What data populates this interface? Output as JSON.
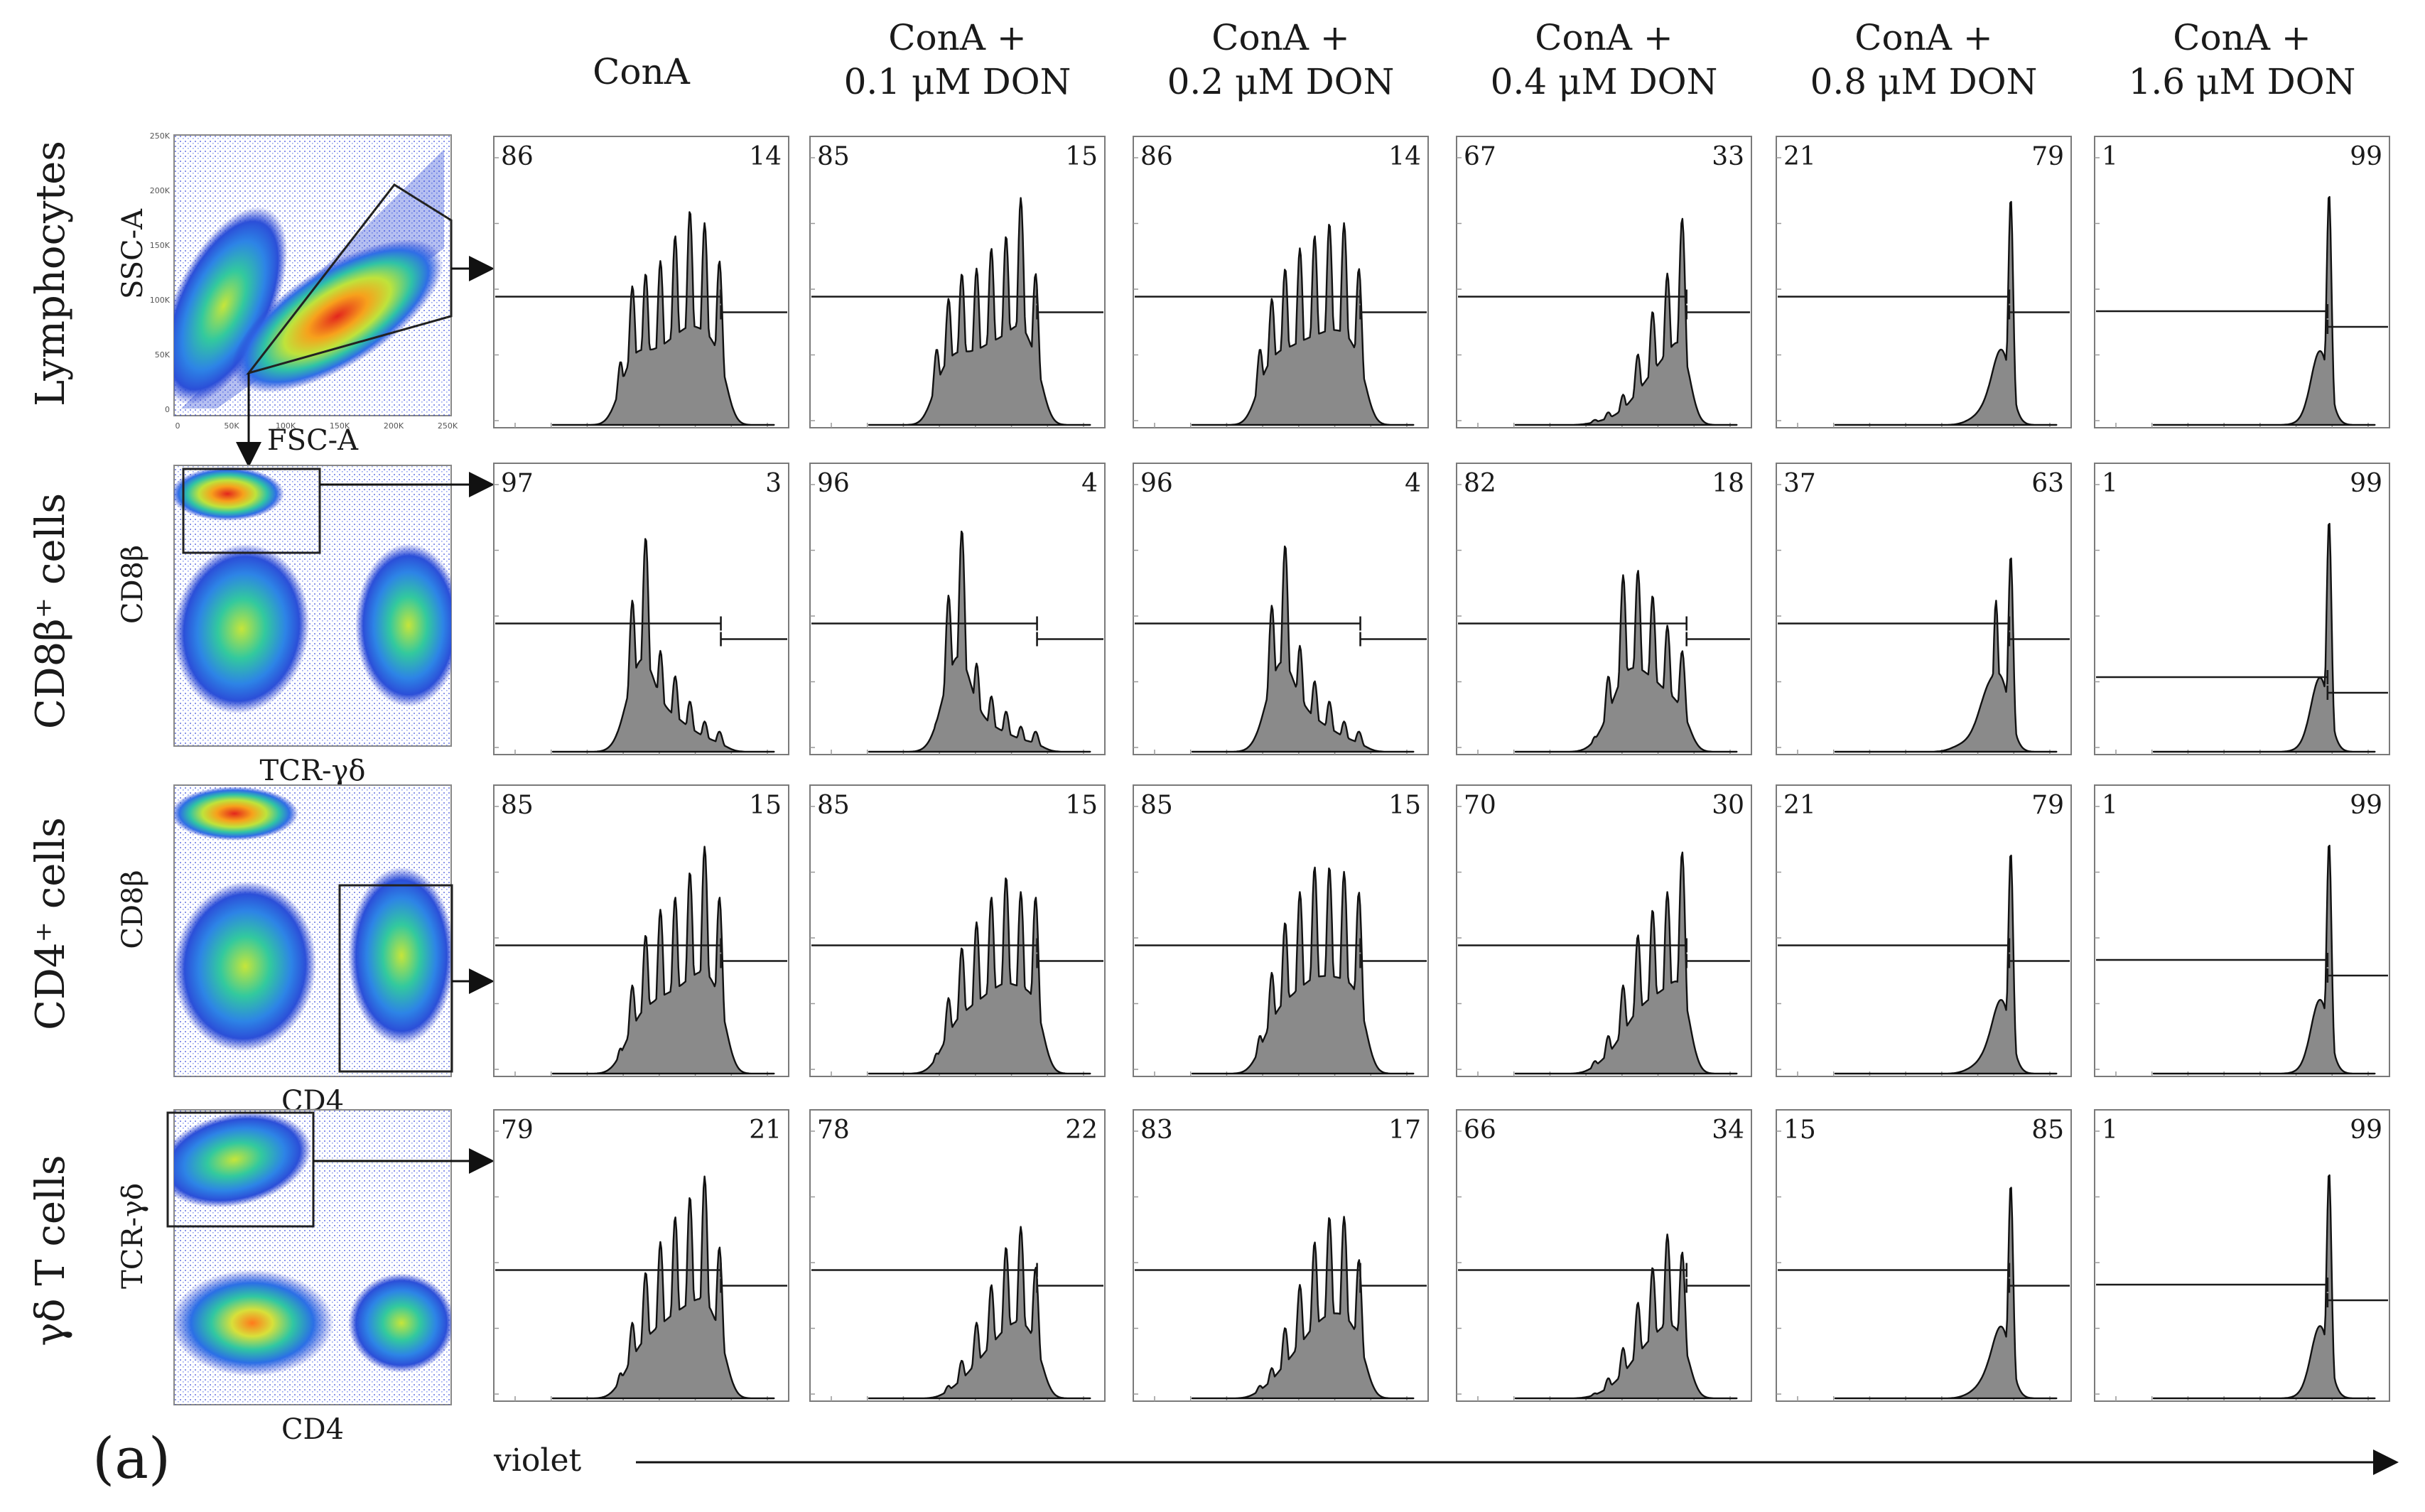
{
  "panel_label": "(a)",
  "violet_label": "violet",
  "chart_data": {
    "type": "histogram-grid",
    "title": "",
    "column_headers": [
      "ConA",
      "ConA +\n0.1 μM DON",
      "ConA +\n0.2 μM DON",
      "ConA +\n0.4 μM DON",
      "ConA +\n0.8 μM DON",
      "ConA +\n1.6 μM DON"
    ],
    "xlabel": "violet",
    "rows": [
      {
        "name": "Lymphocytes",
        "gate": {
          "xlabel": "FSC-A",
          "ylabel": "SSC-A",
          "x_ticks": [
            "0",
            "50K",
            "100K",
            "150K",
            "200K",
            "250K"
          ],
          "y_ticks": [
            "0",
            "50K",
            "100K",
            "150K",
            "200K",
            "250K"
          ]
        },
        "left": [
          86,
          85,
          86,
          67,
          21,
          1
        ],
        "right": [
          14,
          15,
          14,
          33,
          79,
          99
        ]
      },
      {
        "name": "CD8β⁺ cells",
        "gate": {
          "xlabel": "TCR-γδ",
          "ylabel": "CD8β"
        },
        "left": [
          97,
          96,
          96,
          82,
          37,
          1
        ],
        "right": [
          3,
          4,
          4,
          18,
          63,
          99
        ]
      },
      {
        "name": "CD4⁺ cells",
        "gate": {
          "xlabel": "CD4",
          "ylabel": "CD8β"
        },
        "left": [
          85,
          85,
          85,
          70,
          21,
          1
        ],
        "right": [
          15,
          15,
          15,
          30,
          79,
          99
        ]
      },
      {
        "name": "γδ T cells",
        "gate": {
          "xlabel": "CD4",
          "ylabel": "TCR-γδ"
        },
        "left": [
          79,
          78,
          83,
          66,
          15,
          1
        ],
        "right": [
          21,
          22,
          17,
          34,
          85,
          99
        ]
      }
    ]
  }
}
